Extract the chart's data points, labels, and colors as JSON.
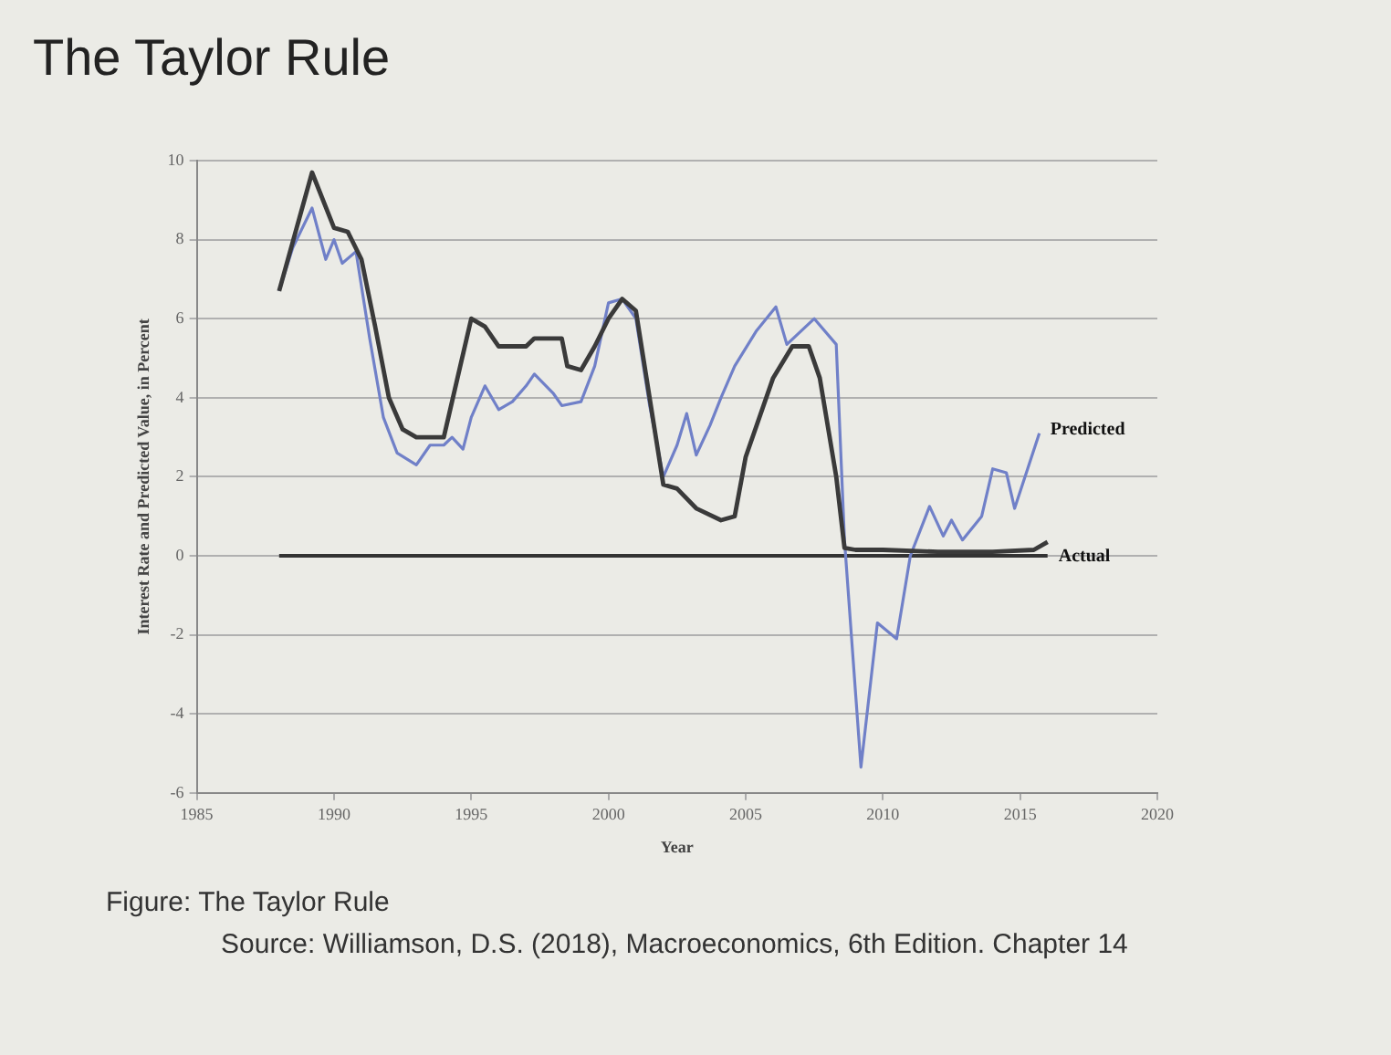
{
  "chart_data": {
    "type": "line",
    "title": "The Taylor Rule",
    "xlabel": "Year",
    "ylabel": "Interest Rate and Predicted Value, in Percent",
    "xlim": [
      1985,
      2020
    ],
    "xticks": [
      1985,
      1990,
      1995,
      2000,
      2005,
      2010,
      2015,
      2020
    ],
    "ylim": [
      -6,
      10
    ],
    "yticks": [
      -6,
      -4,
      -2,
      0,
      2,
      4,
      6,
      8,
      10
    ],
    "grid": "y",
    "legend": false,
    "marker": "none",
    "line_style": "solid",
    "series": [
      {
        "name": "Actual",
        "color": "#3a3a3a",
        "x": [
          1988,
          1989.2,
          1990,
          1990.5,
          1991,
          1991.5,
          1992,
          1992.5,
          1993,
          1994,
          1994.5,
          1995,
          1995.5,
          1996,
          1997,
          1997.3,
          1998.3,
          1998.5,
          1999,
          1999.5,
          2000,
          2000.5,
          2001,
          2001.5,
          2002,
          2002.5,
          2003.2,
          2004.1,
          2004.6,
          2005,
          2006,
          2006.7,
          2007.3,
          2007.7,
          2008.3,
          2008.6,
          2009,
          2010,
          2012,
          2014,
          2015.5,
          2016
        ],
        "values": [
          6.7,
          9.7,
          8.3,
          8.2,
          7.5,
          5.8,
          4.0,
          3.2,
          3.0,
          3.0,
          4.5,
          6.0,
          5.8,
          5.3,
          5.3,
          5.5,
          5.5,
          4.8,
          4.7,
          5.3,
          6.0,
          6.5,
          6.2,
          4.0,
          1.8,
          1.7,
          1.2,
          0.9,
          1.0,
          2.5,
          4.5,
          5.3,
          5.3,
          4.5,
          2.0,
          0.2,
          0.15,
          0.15,
          0.1,
          0.1,
          0.15,
          0.35
        ]
      },
      {
        "name": "Predicted",
        "color": "#7080c8",
        "x": [
          1988,
          1988.5,
          1989.2,
          1989.7,
          1990,
          1990.3,
          1990.8,
          1991.3,
          1991.8,
          1992.3,
          1993,
          1993.5,
          1994,
          1994.3,
          1994.7,
          1995,
          1995.5,
          1996,
          1996.5,
          1997,
          1997.3,
          1998,
          1998.3,
          1999,
          1999.5,
          2000,
          2000.5,
          2001,
          2001.5,
          2002,
          2002.5,
          2002.85,
          2003.2,
          2003.7,
          2004.1,
          2004.6,
          2005.4,
          2006.1,
          2006.5,
          2007.5,
          2008.3,
          2008.6,
          2009.2,
          2009.8,
          2010.5,
          2011,
          2011.7,
          2012.2,
          2012.5,
          2012.9,
          2013.6,
          2014,
          2014.5,
          2014.8,
          2015.7
        ],
        "values": [
          6.7,
          7.8,
          8.8,
          7.5,
          8.0,
          7.4,
          7.7,
          5.5,
          3.5,
          2.6,
          2.3,
          2.8,
          2.8,
          3.0,
          2.7,
          3.5,
          4.3,
          3.7,
          3.9,
          4.3,
          4.6,
          4.1,
          3.8,
          3.9,
          4.8,
          6.4,
          6.5,
          6.0,
          3.8,
          2.0,
          2.8,
          3.6,
          2.55,
          3.3,
          4.0,
          4.8,
          5.7,
          6.3,
          5.35,
          6.0,
          5.35,
          0.4,
          -5.35,
          -1.7,
          -2.1,
          0.0,
          1.25,
          0.5,
          0.9,
          0.4,
          1.0,
          2.2,
          2.1,
          1.2,
          3.1
        ]
      }
    ],
    "ref_lines": [
      {
        "axis": "y",
        "value": 0,
        "color": "#333333"
      }
    ],
    "annotations": [
      "Figure: The Taylor Rule",
      "Source: Williamson, D.S. (2018), Macroeconomics, 6th Edition. Chapter 14"
    ]
  }
}
